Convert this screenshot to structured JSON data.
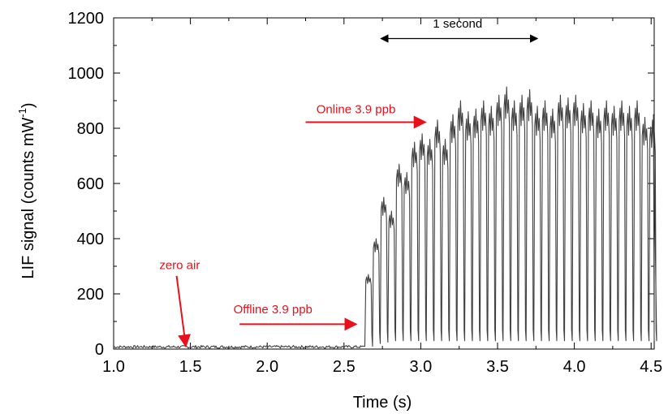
{
  "chart_data": {
    "type": "line",
    "title": "",
    "xlabel": "Time (s)",
    "ylabel": "LIF signal (counts mW",
    "ylabel_sup": "-1",
    "ylabel_end": ")",
    "xlim": [
      1.0,
      4.52
    ],
    "ylim": [
      0,
      1200
    ],
    "xticks": [
      1.0,
      1.5,
      2.0,
      2.5,
      3.0,
      3.5,
      4.0,
      4.5
    ],
    "xtick_labels": [
      "1.0",
      "1.5",
      "2.0",
      "2.5",
      "3.0",
      "3.5",
      "4.0",
      "4.5"
    ],
    "yticks": [
      0,
      200,
      400,
      600,
      800,
      1000,
      1200
    ],
    "ytick_labels": [
      "0",
      "200",
      "400",
      "600",
      "800",
      "1000",
      "1200"
    ],
    "grid": false,
    "line_color": "#404040",
    "annotation_color": "#e8101a",
    "series": [
      {
        "baseline": {
          "x_start": 1.0,
          "x_end": 2.63,
          "level": 8,
          "noise": 5
        },
        "onset_x": 2.63,
        "period_s": 0.1,
        "high_segments": [
          {
            "x": 2.64,
            "peak": 270,
            "trough": 10
          },
          {
            "x": 2.69,
            "peak": 400,
            "trough": 20
          },
          {
            "x": 2.74,
            "peak": 550,
            "trough": 25
          },
          {
            "x": 2.79,
            "peak": 500,
            "trough": 30
          },
          {
            "x": 2.84,
            "peak": 670,
            "trough": 30
          },
          {
            "x": 2.89,
            "peak": 640,
            "trough": 30
          },
          {
            "x": 2.94,
            "peak": 750,
            "trough": 30
          },
          {
            "x": 2.99,
            "peak": 780,
            "trough": 30
          },
          {
            "x": 3.04,
            "peak": 760,
            "trough": 30
          },
          {
            "x": 3.09,
            "peak": 830,
            "trough": 30
          },
          {
            "x": 3.14,
            "peak": 760,
            "trough": 30
          },
          {
            "x": 3.19,
            "peak": 850,
            "trough": 30
          },
          {
            "x": 3.24,
            "peak": 900,
            "trough": 30
          },
          {
            "x": 3.29,
            "peak": 860,
            "trough": 30
          },
          {
            "x": 3.34,
            "peak": 870,
            "trough": 30
          },
          {
            "x": 3.39,
            "peak": 900,
            "trough": 30
          },
          {
            "x": 3.44,
            "peak": 880,
            "trough": 30
          },
          {
            "x": 3.49,
            "peak": 920,
            "trough": 30
          },
          {
            "x": 3.54,
            "peak": 950,
            "trough": 30
          },
          {
            "x": 3.59,
            "peak": 900,
            "trough": 30
          },
          {
            "x": 3.64,
            "peak": 920,
            "trough": 30
          },
          {
            "x": 3.69,
            "peak": 940,
            "trough": 30
          },
          {
            "x": 3.74,
            "peak": 880,
            "trough": 30
          },
          {
            "x": 3.79,
            "peak": 900,
            "trough": 30
          },
          {
            "x": 3.84,
            "peak": 870,
            "trough": 30
          },
          {
            "x": 3.89,
            "peak": 920,
            "trough": 30
          },
          {
            "x": 3.94,
            "peak": 910,
            "trough": 30
          },
          {
            "x": 3.99,
            "peak": 920,
            "trough": 30
          },
          {
            "x": 4.04,
            "peak": 890,
            "trough": 30
          },
          {
            "x": 4.09,
            "peak": 900,
            "trough": 30
          },
          {
            "x": 4.14,
            "peak": 870,
            "trough": 30
          },
          {
            "x": 4.19,
            "peak": 900,
            "trough": 30
          },
          {
            "x": 4.24,
            "peak": 880,
            "trough": 30
          },
          {
            "x": 4.29,
            "peak": 900,
            "trough": 30
          },
          {
            "x": 4.34,
            "peak": 880,
            "trough": 30
          },
          {
            "x": 4.39,
            "peak": 900,
            "trough": 30
          },
          {
            "x": 4.44,
            "peak": 840,
            "trough": 30
          },
          {
            "x": 4.49,
            "peak": 830,
            "trough": 30
          }
        ]
      }
    ],
    "annotations": [
      {
        "id": "zero-air",
        "text": "zero air",
        "text_x": 1.43,
        "text_y": 290,
        "arrow_from": [
          1.41,
          265
        ],
        "arrow_to": [
          1.47,
          10
        ]
      },
      {
        "id": "offline",
        "text": "Offline 3.9 ppb",
        "text_x": 1.78,
        "text_y": 130,
        "arrow_from": [
          1.82,
          90
        ],
        "arrow_to": [
          2.58,
          90
        ]
      },
      {
        "id": "online",
        "text": "Online 3.9 ppb",
        "text_x": 2.32,
        "text_y": 855,
        "arrow_from": [
          2.25,
          822
        ],
        "arrow_to": [
          3.03,
          822
        ]
      },
      {
        "id": "one-second",
        "text": "1 second",
        "text_x": 3.24,
        "text_y": 1165,
        "double_from": [
          2.74,
          1125
        ],
        "double_to": [
          3.76,
          1125
        ],
        "color": "#000000"
      }
    ]
  }
}
